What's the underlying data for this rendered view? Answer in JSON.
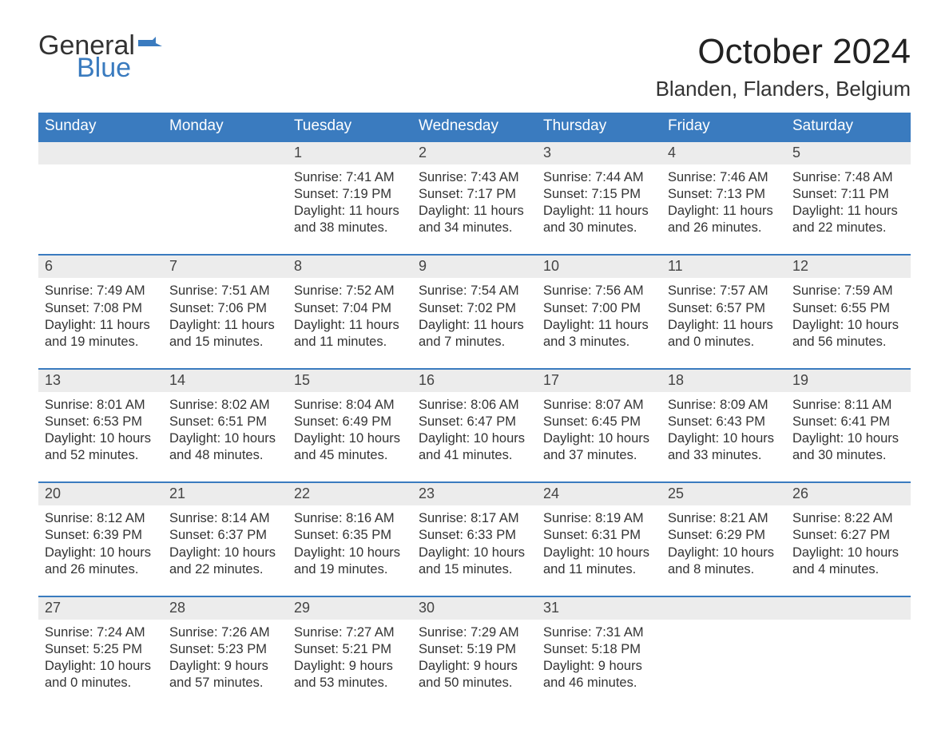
{
  "colors": {
    "brand_blue": "#3a7bbf",
    "header_bg": "#3a7bbf",
    "daynum_bg": "#ececec",
    "text": "#333333",
    "background": "#ffffff"
  },
  "typography": {
    "title_fontsize": 44,
    "subtitle_fontsize": 26,
    "weekday_fontsize": 19,
    "daynum_fontsize": 18,
    "body_fontsize": 16.5,
    "font_family": "Arial"
  },
  "logo": {
    "word1": "General",
    "word2": "Blue"
  },
  "title": "October 2024",
  "subtitle": "Blanden, Flanders, Belgium",
  "layout": {
    "columns": 7,
    "rows": 5,
    "first_weekday_index": 2
  },
  "weekdays": [
    "Sunday",
    "Monday",
    "Tuesday",
    "Wednesday",
    "Thursday",
    "Friday",
    "Saturday"
  ],
  "weeks": [
    [
      null,
      null,
      {
        "n": "1",
        "sunrise": "7:41 AM",
        "sunset": "7:19 PM",
        "day_h": "11",
        "day_m": "38"
      },
      {
        "n": "2",
        "sunrise": "7:43 AM",
        "sunset": "7:17 PM",
        "day_h": "11",
        "day_m": "34"
      },
      {
        "n": "3",
        "sunrise": "7:44 AM",
        "sunset": "7:15 PM",
        "day_h": "11",
        "day_m": "30"
      },
      {
        "n": "4",
        "sunrise": "7:46 AM",
        "sunset": "7:13 PM",
        "day_h": "11",
        "day_m": "26"
      },
      {
        "n": "5",
        "sunrise": "7:48 AM",
        "sunset": "7:11 PM",
        "day_h": "11",
        "day_m": "22"
      }
    ],
    [
      {
        "n": "6",
        "sunrise": "7:49 AM",
        "sunset": "7:08 PM",
        "day_h": "11",
        "day_m": "19"
      },
      {
        "n": "7",
        "sunrise": "7:51 AM",
        "sunset": "7:06 PM",
        "day_h": "11",
        "day_m": "15"
      },
      {
        "n": "8",
        "sunrise": "7:52 AM",
        "sunset": "7:04 PM",
        "day_h": "11",
        "day_m": "11"
      },
      {
        "n": "9",
        "sunrise": "7:54 AM",
        "sunset": "7:02 PM",
        "day_h": "11",
        "day_m": "7"
      },
      {
        "n": "10",
        "sunrise": "7:56 AM",
        "sunset": "7:00 PM",
        "day_h": "11",
        "day_m": "3"
      },
      {
        "n": "11",
        "sunrise": "7:57 AM",
        "sunset": "6:57 PM",
        "day_h": "11",
        "day_m": "0"
      },
      {
        "n": "12",
        "sunrise": "7:59 AM",
        "sunset": "6:55 PM",
        "day_h": "10",
        "day_m": "56"
      }
    ],
    [
      {
        "n": "13",
        "sunrise": "8:01 AM",
        "sunset": "6:53 PM",
        "day_h": "10",
        "day_m": "52"
      },
      {
        "n": "14",
        "sunrise": "8:02 AM",
        "sunset": "6:51 PM",
        "day_h": "10",
        "day_m": "48"
      },
      {
        "n": "15",
        "sunrise": "8:04 AM",
        "sunset": "6:49 PM",
        "day_h": "10",
        "day_m": "45"
      },
      {
        "n": "16",
        "sunrise": "8:06 AM",
        "sunset": "6:47 PM",
        "day_h": "10",
        "day_m": "41"
      },
      {
        "n": "17",
        "sunrise": "8:07 AM",
        "sunset": "6:45 PM",
        "day_h": "10",
        "day_m": "37"
      },
      {
        "n": "18",
        "sunrise": "8:09 AM",
        "sunset": "6:43 PM",
        "day_h": "10",
        "day_m": "33"
      },
      {
        "n": "19",
        "sunrise": "8:11 AM",
        "sunset": "6:41 PM",
        "day_h": "10",
        "day_m": "30"
      }
    ],
    [
      {
        "n": "20",
        "sunrise": "8:12 AM",
        "sunset": "6:39 PM",
        "day_h": "10",
        "day_m": "26"
      },
      {
        "n": "21",
        "sunrise": "8:14 AM",
        "sunset": "6:37 PM",
        "day_h": "10",
        "day_m": "22"
      },
      {
        "n": "22",
        "sunrise": "8:16 AM",
        "sunset": "6:35 PM",
        "day_h": "10",
        "day_m": "19"
      },
      {
        "n": "23",
        "sunrise": "8:17 AM",
        "sunset": "6:33 PM",
        "day_h": "10",
        "day_m": "15"
      },
      {
        "n": "24",
        "sunrise": "8:19 AM",
        "sunset": "6:31 PM",
        "day_h": "10",
        "day_m": "11"
      },
      {
        "n": "25",
        "sunrise": "8:21 AM",
        "sunset": "6:29 PM",
        "day_h": "10",
        "day_m": "8"
      },
      {
        "n": "26",
        "sunrise": "8:22 AM",
        "sunset": "6:27 PM",
        "day_h": "10",
        "day_m": "4"
      }
    ],
    [
      {
        "n": "27",
        "sunrise": "7:24 AM",
        "sunset": "5:25 PM",
        "day_h": "10",
        "day_m": "0"
      },
      {
        "n": "28",
        "sunrise": "7:26 AM",
        "sunset": "5:23 PM",
        "day_h": "9",
        "day_m": "57"
      },
      {
        "n": "29",
        "sunrise": "7:27 AM",
        "sunset": "5:21 PM",
        "day_h": "9",
        "day_m": "53"
      },
      {
        "n": "30",
        "sunrise": "7:29 AM",
        "sunset": "5:19 PM",
        "day_h": "9",
        "day_m": "50"
      },
      {
        "n": "31",
        "sunrise": "7:31 AM",
        "sunset": "5:18 PM",
        "day_h": "9",
        "day_m": "46"
      },
      null,
      null
    ]
  ],
  "labels": {
    "sunrise": "Sunrise:",
    "sunset": "Sunset:",
    "daylight1": "Daylight:",
    "hours_word": "hours",
    "and_word": "and",
    "minutes_word": "minutes."
  }
}
